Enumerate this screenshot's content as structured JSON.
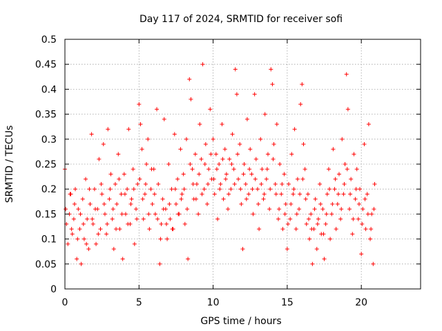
{
  "chart_data": {
    "type": "scatter",
    "title": "Day 117 of 2024, SRMTID for receiver sofi",
    "xlabel": "GPS time / hours",
    "ylabel": "SRMTID / TECUs",
    "xlim": [
      0,
      24
    ],
    "ylim": [
      0,
      0.5
    ],
    "x_ticks": [
      0,
      5,
      10,
      15,
      20
    ],
    "x_tick_labels": [
      "0",
      "5",
      "10",
      "15",
      "20"
    ],
    "y_ticks": [
      0,
      0.05,
      0.1,
      0.15,
      0.2,
      0.25,
      0.3,
      0.35,
      0.4,
      0.45,
      0.5
    ],
    "y_tick_labels": [
      "0",
      "0.05",
      "0.1",
      "0.15",
      "0.2",
      "0.25",
      "0.3",
      "0.35",
      "0.4",
      "0.45",
      "0.5"
    ],
    "grid": true,
    "marker": "+",
    "marker_color": "#ff0000",
    "x_data_range": [
      0,
      21
    ],
    "points": [
      [
        0.0,
        0.24
      ],
      [
        0.1,
        0.13
      ],
      [
        0.2,
        0.09
      ],
      [
        0.3,
        0.15
      ],
      [
        0.4,
        0.19
      ],
      [
        0.5,
        0.11
      ],
      [
        0.6,
        0.14
      ],
      [
        0.7,
        0.2
      ],
      [
        0.8,
        0.06
      ],
      [
        0.9,
        0.16
      ],
      [
        1.0,
        0.12
      ],
      [
        1.1,
        0.05
      ],
      [
        1.2,
        0.18
      ],
      [
        1.3,
        0.1
      ],
      [
        1.4,
        0.22
      ],
      [
        1.5,
        0.14
      ],
      [
        1.6,
        0.08
      ],
      [
        1.7,
        0.17
      ],
      [
        1.8,
        0.31
      ],
      [
        1.9,
        0.13
      ],
      [
        2.0,
        0.2
      ],
      [
        2.1,
        0.09
      ],
      [
        2.2,
        0.16
      ],
      [
        2.3,
        0.26
      ],
      [
        2.4,
        0.12
      ],
      [
        2.5,
        0.19
      ],
      [
        2.6,
        0.29
      ],
      [
        2.7,
        0.15
      ],
      [
        2.8,
        0.11
      ],
      [
        2.9,
        0.32
      ],
      [
        3.0,
        0.18
      ],
      [
        3.1,
        0.23
      ],
      [
        3.2,
        0.14
      ],
      [
        3.3,
        0.08
      ],
      [
        3.4,
        0.21
      ],
      [
        3.5,
        0.17
      ],
      [
        3.6,
        0.27
      ],
      [
        3.7,
        0.12
      ],
      [
        3.8,
        0.19
      ],
      [
        3.9,
        0.06
      ],
      [
        4.0,
        0.23
      ],
      [
        4.1,
        0.15
      ],
      [
        4.2,
        0.2
      ],
      [
        4.3,
        0.32
      ],
      [
        4.4,
        0.13
      ],
      [
        4.5,
        0.18
      ],
      [
        4.6,
        0.24
      ],
      [
        4.7,
        0.09
      ],
      [
        4.8,
        0.16
      ],
      [
        4.9,
        0.21
      ],
      [
        5.0,
        0.37
      ],
      [
        5.1,
        0.33
      ],
      [
        5.2,
        0.28
      ],
      [
        5.3,
        0.14
      ],
      [
        5.4,
        0.19
      ],
      [
        5.5,
        0.25
      ],
      [
        5.6,
        0.3
      ],
      [
        5.7,
        0.12
      ],
      [
        5.8,
        0.2
      ],
      [
        5.9,
        0.17
      ],
      [
        6.0,
        0.24
      ],
      [
        6.1,
        0.15
      ],
      [
        6.2,
        0.36
      ],
      [
        6.3,
        0.21
      ],
      [
        6.4,
        0.05
      ],
      [
        6.5,
        0.13
      ],
      [
        6.6,
        0.18
      ],
      [
        6.7,
        0.34
      ],
      [
        6.8,
        0.16
      ],
      [
        6.9,
        0.1
      ],
      [
        7.0,
        0.25
      ],
      [
        7.1,
        0.14
      ],
      [
        7.2,
        0.2
      ],
      [
        7.3,
        0.12
      ],
      [
        7.4,
        0.31
      ],
      [
        7.5,
        0.17
      ],
      [
        7.6,
        0.22
      ],
      [
        7.7,
        0.15
      ],
      [
        7.8,
        0.28
      ],
      [
        7.9,
        0.19
      ],
      [
        8.0,
        0.23
      ],
      [
        8.1,
        0.13
      ],
      [
        8.2,
        0.3
      ],
      [
        8.3,
        0.06
      ],
      [
        8.4,
        0.42
      ],
      [
        8.5,
        0.38
      ],
      [
        8.6,
        0.24
      ],
      [
        8.7,
        0.18
      ],
      [
        8.8,
        0.27
      ],
      [
        8.9,
        0.21
      ],
      [
        9.0,
        0.15
      ],
      [
        9.1,
        0.33
      ],
      [
        9.2,
        0.26
      ],
      [
        9.3,
        0.45
      ],
      [
        9.4,
        0.2
      ],
      [
        9.5,
        0.29
      ],
      [
        9.6,
        0.17
      ],
      [
        9.7,
        0.24
      ],
      [
        9.8,
        0.36
      ],
      [
        9.9,
        0.22
      ],
      [
        10.0,
        0.3
      ],
      [
        10.1,
        0.19
      ],
      [
        10.2,
        0.27
      ],
      [
        10.3,
        0.14
      ],
      [
        10.4,
        0.25
      ],
      [
        10.5,
        0.21
      ],
      [
        10.6,
        0.33
      ],
      [
        10.7,
        0.18
      ],
      [
        10.8,
        0.28
      ],
      [
        10.9,
        0.23
      ],
      [
        11.0,
        0.16
      ],
      [
        11.1,
        0.26
      ],
      [
        11.2,
        0.2
      ],
      [
        11.3,
        0.31
      ],
      [
        11.4,
        0.24
      ],
      [
        11.5,
        0.44
      ],
      [
        11.6,
        0.39
      ],
      [
        11.7,
        0.22
      ],
      [
        11.8,
        0.29
      ],
      [
        11.9,
        0.17
      ],
      [
        12.0,
        0.08
      ],
      [
        12.1,
        0.25
      ],
      [
        12.2,
        0.21
      ],
      [
        12.3,
        0.34
      ],
      [
        12.4,
        0.19
      ],
      [
        12.5,
        0.28
      ],
      [
        12.6,
        0.23
      ],
      [
        12.7,
        0.15
      ],
      [
        12.8,
        0.39
      ],
      [
        12.9,
        0.26
      ],
      [
        13.0,
        0.2
      ],
      [
        13.1,
        0.12
      ],
      [
        13.2,
        0.3
      ],
      [
        13.3,
        0.24
      ],
      [
        13.4,
        0.18
      ],
      [
        13.5,
        0.35
      ],
      [
        13.6,
        0.22
      ],
      [
        13.7,
        0.27
      ],
      [
        13.8,
        0.16
      ],
      [
        13.9,
        0.44
      ],
      [
        14.0,
        0.41
      ],
      [
        14.1,
        0.29
      ],
      [
        14.2,
        0.21
      ],
      [
        14.3,
        0.33
      ],
      [
        14.4,
        0.14
      ],
      [
        14.5,
        0.25
      ],
      [
        14.6,
        0.19
      ],
      [
        14.7,
        0.12
      ],
      [
        14.8,
        0.23
      ],
      [
        14.9,
        0.17
      ],
      [
        15.0,
        0.08
      ],
      [
        15.1,
        0.21
      ],
      [
        15.2,
        0.14
      ],
      [
        15.3,
        0.27
      ],
      [
        15.4,
        0.19
      ],
      [
        15.5,
        0.32
      ],
      [
        15.6,
        0.12
      ],
      [
        15.7,
        0.22
      ],
      [
        15.8,
        0.16
      ],
      [
        15.9,
        0.37
      ],
      [
        16.0,
        0.41
      ],
      [
        16.1,
        0.29
      ],
      [
        16.2,
        0.24
      ],
      [
        16.3,
        0.13
      ],
      [
        16.4,
        0.19
      ],
      [
        16.5,
        0.1
      ],
      [
        16.6,
        0.15
      ],
      [
        16.7,
        0.05
      ],
      [
        16.8,
        0.12
      ],
      [
        16.9,
        0.18
      ],
      [
        17.0,
        0.08
      ],
      [
        17.1,
        0.14
      ],
      [
        17.2,
        0.21
      ],
      [
        17.3,
        0.11
      ],
      [
        17.4,
        0.16
      ],
      [
        17.5,
        0.06
      ],
      [
        17.6,
        0.13
      ],
      [
        17.7,
        0.19
      ],
      [
        17.8,
        0.24
      ],
      [
        17.9,
        0.1
      ],
      [
        18.0,
        0.15
      ],
      [
        18.1,
        0.28
      ],
      [
        18.2,
        0.2
      ],
      [
        18.3,
        0.12
      ],
      [
        18.4,
        0.17
      ],
      [
        18.5,
        0.23
      ],
      [
        18.6,
        0.14
      ],
      [
        18.7,
        0.3
      ],
      [
        18.8,
        0.19
      ],
      [
        18.9,
        0.25
      ],
      [
        19.0,
        0.43
      ],
      [
        19.1,
        0.36
      ],
      [
        19.2,
        0.16
      ],
      [
        19.3,
        0.22
      ],
      [
        19.4,
        0.11
      ],
      [
        19.5,
        0.27
      ],
      [
        19.6,
        0.18
      ],
      [
        19.7,
        0.24
      ],
      [
        19.8,
        0.14
      ],
      [
        19.9,
        0.2
      ],
      [
        20.0,
        0.07
      ],
      [
        20.1,
        0.16
      ],
      [
        20.2,
        0.29
      ],
      [
        20.3,
        0.12
      ],
      [
        20.4,
        0.19
      ],
      [
        20.5,
        0.33
      ],
      [
        20.6,
        0.1
      ],
      [
        20.7,
        0.15
      ],
      [
        20.8,
        0.05
      ],
      [
        20.9,
        0.21
      ],
      [
        0.05,
        0.16
      ],
      [
        0.35,
        0.19
      ],
      [
        0.45,
        0.12
      ],
      [
        0.65,
        0.17
      ],
      [
        0.85,
        0.1
      ],
      [
        1.05,
        0.15
      ],
      [
        1.25,
        0.13
      ],
      [
        1.45,
        0.09
      ],
      [
        1.65,
        0.2
      ],
      [
        1.85,
        0.14
      ],
      [
        2.05,
        0.16
      ],
      [
        2.25,
        0.11
      ],
      [
        2.45,
        0.21
      ],
      [
        2.65,
        0.17
      ],
      [
        2.85,
        0.13
      ],
      [
        3.05,
        0.2
      ],
      [
        3.25,
        0.16
      ],
      [
        3.45,
        0.12
      ],
      [
        3.65,
        0.22
      ],
      [
        3.85,
        0.15
      ],
      [
        4.05,
        0.19
      ],
      [
        4.25,
        0.13
      ],
      [
        4.45,
        0.17
      ],
      [
        4.65,
        0.2
      ],
      [
        4.85,
        0.14
      ],
      [
        5.05,
        0.22
      ],
      [
        5.25,
        0.18
      ],
      [
        5.45,
        0.21
      ],
      [
        5.65,
        0.15
      ],
      [
        5.85,
        0.24
      ],
      [
        6.05,
        0.19
      ],
      [
        6.25,
        0.14
      ],
      [
        6.45,
        0.1
      ],
      [
        6.65,
        0.16
      ],
      [
        6.85,
        0.13
      ],
      [
        7.05,
        0.17
      ],
      [
        7.25,
        0.12
      ],
      [
        7.45,
        0.2
      ],
      [
        7.65,
        0.15
      ],
      [
        7.85,
        0.18
      ],
      [
        8.05,
        0.2
      ],
      [
        8.25,
        0.16
      ],
      [
        8.45,
        0.25
      ],
      [
        8.65,
        0.21
      ],
      [
        8.85,
        0.18
      ],
      [
        9.05,
        0.23
      ],
      [
        9.25,
        0.19
      ],
      [
        9.45,
        0.25
      ],
      [
        9.65,
        0.21
      ],
      [
        9.85,
        0.27
      ],
      [
        10.05,
        0.22
      ],
      [
        10.25,
        0.24
      ],
      [
        10.45,
        0.2
      ],
      [
        10.65,
        0.26
      ],
      [
        10.85,
        0.22
      ],
      [
        11.05,
        0.19
      ],
      [
        11.25,
        0.25
      ],
      [
        11.45,
        0.21
      ],
      [
        11.65,
        0.27
      ],
      [
        11.85,
        0.2
      ],
      [
        12.05,
        0.23
      ],
      [
        12.25,
        0.18
      ],
      [
        12.45,
        0.24
      ],
      [
        12.65,
        0.2
      ],
      [
        12.85,
        0.22
      ],
      [
        13.05,
        0.17
      ],
      [
        13.25,
        0.21
      ],
      [
        13.45,
        0.19
      ],
      [
        13.65,
        0.24
      ],
      [
        13.85,
        0.2
      ],
      [
        14.05,
        0.26
      ],
      [
        14.25,
        0.19
      ],
      [
        14.45,
        0.16
      ],
      [
        14.65,
        0.21
      ],
      [
        14.85,
        0.15
      ],
      [
        15.05,
        0.13
      ],
      [
        15.25,
        0.17
      ],
      [
        15.45,
        0.2
      ],
      [
        15.65,
        0.15
      ],
      [
        15.85,
        0.19
      ],
      [
        16.05,
        0.22
      ],
      [
        16.25,
        0.18
      ],
      [
        16.45,
        0.14
      ],
      [
        16.65,
        0.12
      ],
      [
        16.85,
        0.16
      ],
      [
        17.05,
        0.13
      ],
      [
        17.25,
        0.17
      ],
      [
        17.45,
        0.11
      ],
      [
        17.65,
        0.15
      ],
      [
        17.85,
        0.2
      ],
      [
        18.05,
        0.17
      ],
      [
        18.25,
        0.22
      ],
      [
        18.45,
        0.19
      ],
      [
        18.65,
        0.16
      ],
      [
        18.85,
        0.21
      ],
      [
        19.05,
        0.24
      ],
      [
        19.25,
        0.19
      ],
      [
        19.45,
        0.14
      ],
      [
        19.65,
        0.2
      ],
      [
        19.85,
        0.17
      ],
      [
        20.05,
        0.13
      ],
      [
        20.25,
        0.18
      ],
      [
        20.45,
        0.15
      ],
      [
        20.65,
        0.12
      ],
      [
        20.85,
        0.16
      ]
    ]
  }
}
